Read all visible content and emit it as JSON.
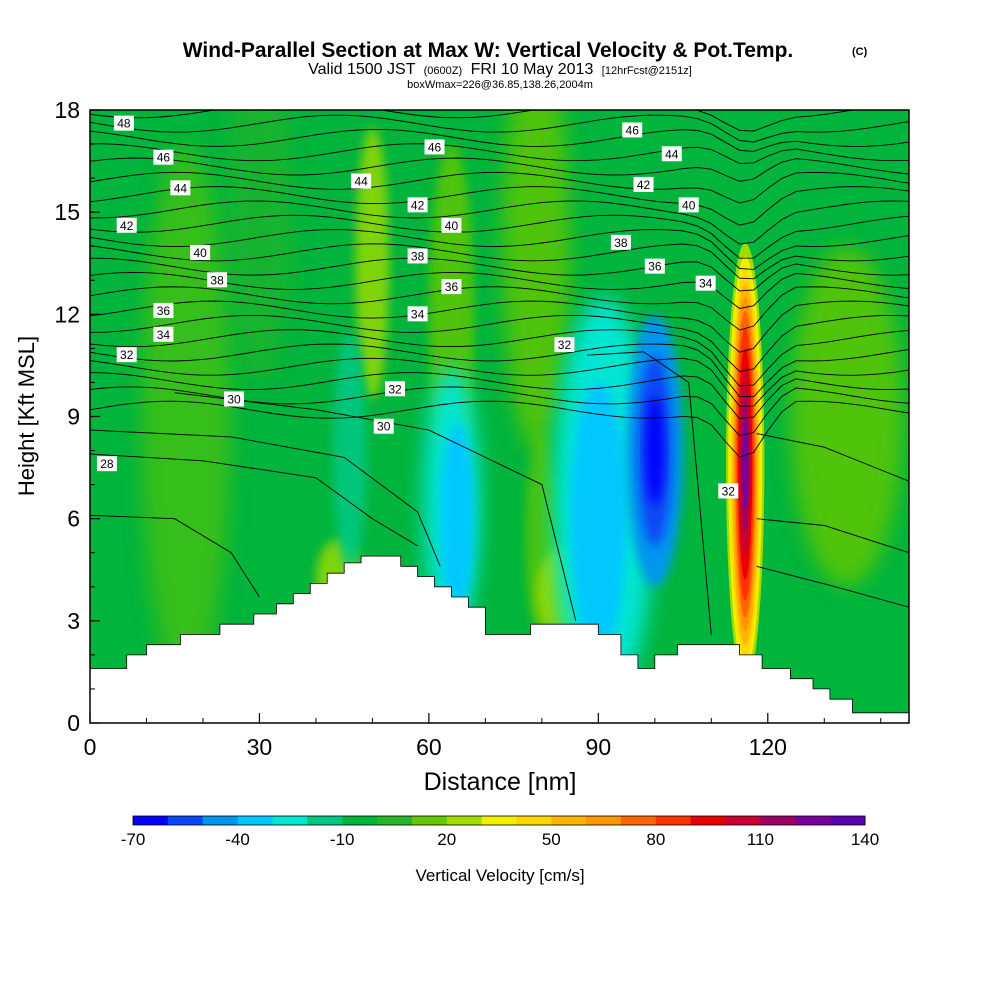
{
  "header": {
    "title": "Wind-Parallel Section at Max W: Vertical Velocity & Pot.Temp.",
    "title_mark": "(C)",
    "subtitle_pre": "Valid 1500 JST",
    "subtitle_zulu": "(0600Z)",
    "subtitle_mid": "FRI 10 May 2013",
    "subtitle_fcst": "[12hrFcst@2151z]",
    "info": "boxWmax=226@36.85,138.26,2004m"
  },
  "colorbar": {
    "label": "Vertical Velocity [cm/s]",
    "tick_labels": [
      "-70",
      "-40",
      "-10",
      "20",
      "50",
      "80",
      "110",
      "140"
    ],
    "tick_values": [
      -70,
      -40,
      -10,
      20,
      50,
      80,
      110,
      140
    ],
    "colors": [
      "#0000ff",
      "#0a46f5",
      "#0096f0",
      "#00c8ff",
      "#00e6d2",
      "#00c882",
      "#00b43c",
      "#28b428",
      "#64c800",
      "#a0dc00",
      "#f0f000",
      "#ffd700",
      "#ffb400",
      "#ff9600",
      "#ff6400",
      "#ff3200",
      "#e60000",
      "#c80032",
      "#9b0064",
      "#780096",
      "#5a00b4"
    ]
  },
  "chart_data": {
    "type": "heatmap",
    "xlabel": "Distance [nm]",
    "ylabel": "Height [Kft MSL]",
    "xlim": [
      0,
      145
    ],
    "ylim": [
      0,
      18
    ],
    "xticks": [
      0,
      30,
      60,
      90,
      120
    ],
    "yticks": [
      0,
      3,
      6,
      9,
      12,
      15,
      18
    ],
    "shaded_field": "Vertical Velocity [cm/s]",
    "contour_field": "Potential Temperature [C]",
    "velocity_features": [
      {
        "center_x": 116,
        "center_y": 7.5,
        "peak": 140
      },
      {
        "center_x": 100,
        "center_y": 8.0,
        "peak": -70
      },
      {
        "center_x": 65,
        "center_y": 6.0,
        "peak": -40
      },
      {
        "center_x": 90,
        "center_y": 6.5,
        "peak": -40
      }
    ],
    "terrain": [
      [
        0,
        1.6
      ],
      [
        6.5,
        1.6
      ],
      [
        6.5,
        2.0
      ],
      [
        10,
        2.0
      ],
      [
        10,
        2.3
      ],
      [
        16,
        2.3
      ],
      [
        16,
        2.6
      ],
      [
        23,
        2.6
      ],
      [
        23,
        2.9
      ],
      [
        29,
        2.9
      ],
      [
        29,
        3.2
      ],
      [
        33,
        3.2
      ],
      [
        33,
        3.5
      ],
      [
        36,
        3.5
      ],
      [
        36,
        3.8
      ],
      [
        39,
        3.8
      ],
      [
        39,
        4.1
      ],
      [
        42,
        4.1
      ],
      [
        42,
        4.4
      ],
      [
        45,
        4.4
      ],
      [
        45,
        4.7
      ],
      [
        48,
        4.7
      ],
      [
        48,
        4.9
      ],
      [
        55,
        4.9
      ],
      [
        55,
        4.6
      ],
      [
        58,
        4.6
      ],
      [
        58,
        4.3
      ],
      [
        61,
        4.3
      ],
      [
        61,
        4.0
      ],
      [
        64,
        4.0
      ],
      [
        64,
        3.7
      ],
      [
        67,
        3.7
      ],
      [
        67,
        3.4
      ],
      [
        70,
        3.4
      ],
      [
        70,
        2.6
      ],
      [
        78,
        2.6
      ],
      [
        78,
        2.9
      ],
      [
        90,
        2.9
      ],
      [
        90,
        2.6
      ],
      [
        94,
        2.6
      ],
      [
        94,
        2.0
      ],
      [
        97,
        2.0
      ],
      [
        97,
        1.6
      ],
      [
        100,
        1.6
      ],
      [
        100,
        2.0
      ],
      [
        104,
        2.0
      ],
      [
        104,
        2.3
      ],
      [
        115,
        2.3
      ],
      [
        115,
        2.0
      ],
      [
        119,
        2.0
      ],
      [
        119,
        1.6
      ],
      [
        124,
        1.6
      ],
      [
        124,
        1.3
      ],
      [
        128,
        1.3
      ],
      [
        128,
        1.0
      ],
      [
        131,
        1.0
      ],
      [
        131,
        0.7
      ],
      [
        135,
        0.7
      ],
      [
        135,
        0.3
      ],
      [
        145,
        0.3
      ]
    ],
    "contours": [
      {
        "value": "48",
        "x": 6,
        "y": 17.6
      },
      {
        "value": "46",
        "x": 13,
        "y": 16.6
      },
      {
        "value": "44",
        "x": 16,
        "y": 15.7
      },
      {
        "value": "42",
        "x": 6.5,
        "y": 14.6
      },
      {
        "value": "40",
        "x": 19.5,
        "y": 13.8
      },
      {
        "value": "38",
        "x": 22.5,
        "y": 13.0
      },
      {
        "value": "36",
        "x": 13,
        "y": 12.1
      },
      {
        "value": "34",
        "x": 13,
        "y": 11.4
      },
      {
        "value": "32",
        "x": 6.5,
        "y": 10.8
      },
      {
        "value": "30",
        "x": 25.5,
        "y": 9.5
      },
      {
        "value": "28",
        "x": 3,
        "y": 7.6
      },
      {
        "value": "46",
        "x": 61,
        "y": 16.9
      },
      {
        "value": "44",
        "x": 48,
        "y": 15.9
      },
      {
        "value": "42",
        "x": 58,
        "y": 15.2
      },
      {
        "value": "40",
        "x": 64,
        "y": 14.6
      },
      {
        "value": "38",
        "x": 58,
        "y": 13.7
      },
      {
        "value": "36",
        "x": 64,
        "y": 12.8
      },
      {
        "value": "34",
        "x": 58,
        "y": 12.0
      },
      {
        "value": "32",
        "x": 54,
        "y": 9.8
      },
      {
        "value": "30",
        "x": 52,
        "y": 8.7
      },
      {
        "value": "46",
        "x": 96,
        "y": 17.4
      },
      {
        "value": "44",
        "x": 103,
        "y": 16.7
      },
      {
        "value": "42",
        "x": 98,
        "y": 15.8
      },
      {
        "value": "40",
        "x": 106,
        "y": 15.2
      },
      {
        "value": "38",
        "x": 94,
        "y": 14.1
      },
      {
        "value": "36",
        "x": 100,
        "y": 13.4
      },
      {
        "value": "34",
        "x": 109,
        "y": 12.9
      },
      {
        "value": "32",
        "x": 84,
        "y": 11.1
      },
      {
        "value": "32",
        "x": 113,
        "y": 6.8
      }
    ]
  }
}
